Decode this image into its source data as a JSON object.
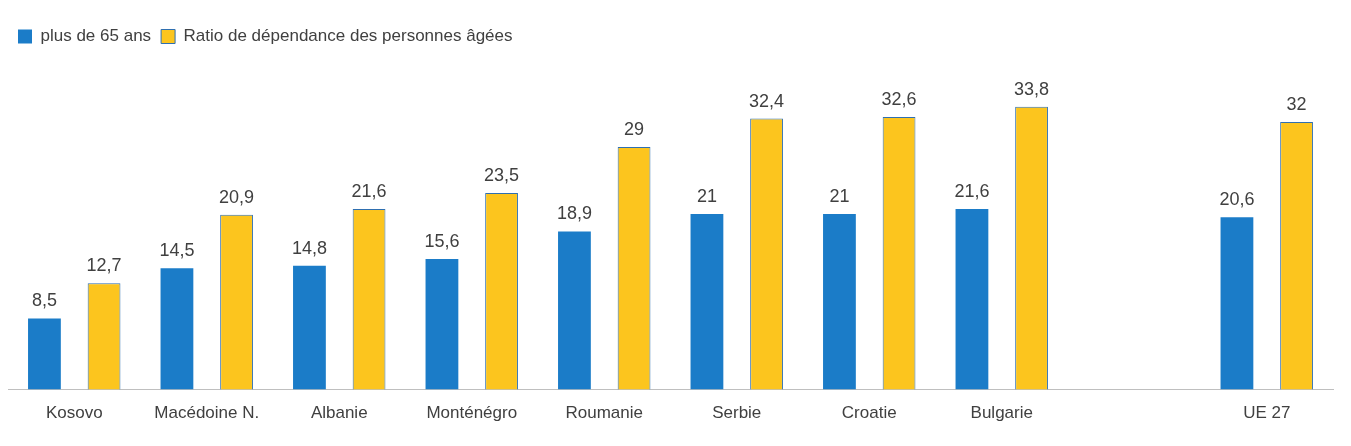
{
  "chart_data": {
    "type": "bar",
    "categories": [
      "Kosovo",
      "Macédoine N.",
      "Albanie",
      "Monténégro",
      "Roumanie",
      "Serbie",
      "Croatie",
      "Bulgarie",
      null,
      "UE 27"
    ],
    "series": [
      {
        "name": "plus de 65 ans",
        "color": "#1b7cc8",
        "values": [
          8.5,
          14.5,
          14.8,
          15.6,
          18.9,
          21,
          21,
          21.6,
          null,
          20.6
        ],
        "value_labels": [
          "8,5",
          "14,5",
          "14,8",
          "15,6",
          "18,9",
          "21",
          "21",
          "21,6",
          null,
          "20,6"
        ]
      },
      {
        "name": "Ratio de dépendance des personnes âgées",
        "color": "#fcc51e",
        "values": [
          12.7,
          20.9,
          21.6,
          23.5,
          29,
          32.4,
          32.6,
          33.8,
          null,
          32
        ],
        "value_labels": [
          "12,7",
          "20,9",
          "21,6",
          "23,5",
          "29",
          "32,4",
          "32,6",
          "33,8",
          null,
          "32"
        ]
      }
    ],
    "legend": "top left",
    "grid": false,
    "tick_labels": "x"
  }
}
